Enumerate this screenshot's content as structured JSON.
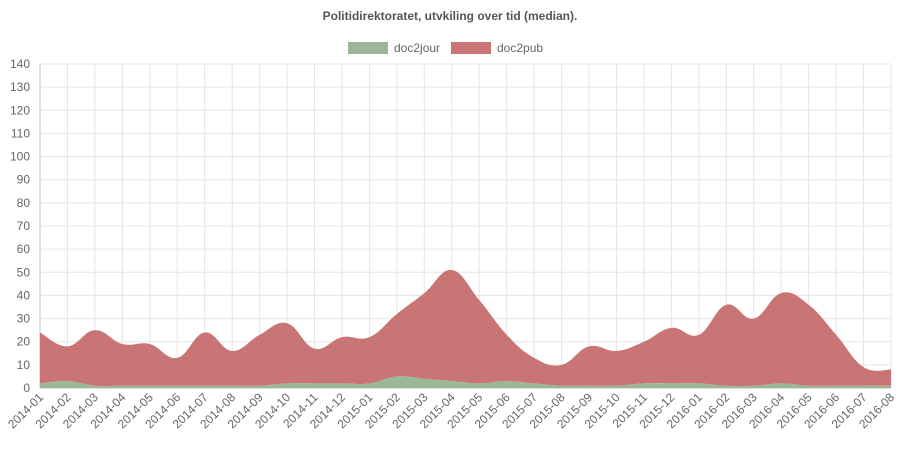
{
  "chart_data": {
    "type": "area",
    "stacked": true,
    "title": "Politidirektoratet, utvkiling over tid (median).",
    "xlabel": "",
    "ylabel": "",
    "ylim": [
      0,
      140
    ],
    "ytick_step": 10,
    "grid": true,
    "legend_position": "top",
    "categories": [
      "2014-01",
      "2014-02",
      "2014-03",
      "2014-04",
      "2014-05",
      "2014-06",
      "2014-07",
      "2014-08",
      "2014-09",
      "2014-10",
      "2014-11",
      "2014-12",
      "2015-01",
      "2015-02",
      "2015-03",
      "2015-04",
      "2015-05",
      "2015-06",
      "2015-07",
      "2015-08",
      "2015-09",
      "2015-10",
      "2015-11",
      "2015-12",
      "2016-01",
      "2016-02",
      "2016-03",
      "2016-04",
      "2016-05",
      "2016-06",
      "2016-07",
      "2016-08"
    ],
    "series": [
      {
        "name": "doc2jour",
        "color": "#9ab797",
        "values": [
          2,
          3,
          1,
          1,
          1,
          1,
          1,
          1,
          1,
          2,
          2,
          2,
          2,
          5,
          4,
          3,
          2,
          3,
          2,
          1,
          1,
          1,
          2,
          2,
          2,
          1,
          1,
          2,
          1,
          1,
          1,
          1
        ]
      },
      {
        "name": "doc2pub",
        "color": "#c97575",
        "values": [
          22,
          15,
          24,
          18,
          18,
          12,
          23,
          15,
          22,
          26,
          15,
          20,
          20,
          27,
          37,
          48,
          36,
          20,
          11,
          9,
          17,
          15,
          18,
          24,
          21,
          35,
          29,
          39,
          35,
          22,
          8,
          7
        ]
      }
    ]
  }
}
